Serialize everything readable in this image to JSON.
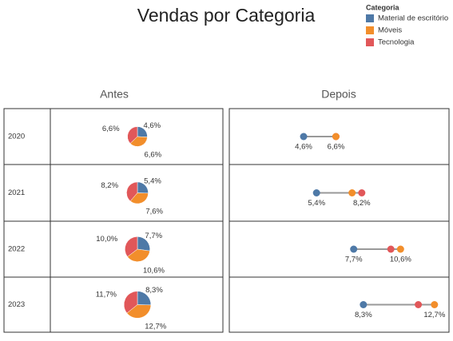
{
  "chart_data": {
    "type": "pie_dot",
    "title": "Vendas por Categoria",
    "legend_title": "Categoria",
    "panel_titles": [
      "Antes",
      "Depois"
    ],
    "categories": [
      "2020",
      "2021",
      "2022",
      "2023"
    ],
    "series": [
      {
        "name": "Material de escritório",
        "color": "#4e79a7",
        "values": [
          4.6,
          5.4,
          7.7,
          8.3
        ],
        "value_labels": [
          "4,6%",
          "5,4%",
          "7,7%",
          "8,3%"
        ]
      },
      {
        "name": "Móveis",
        "color": "#f28e2b",
        "values": [
          6.6,
          7.6,
          10.6,
          12.7
        ],
        "value_labels": [
          "6,6%",
          "7,6%",
          "10,6%",
          "12,7%"
        ]
      },
      {
        "name": "Tecnologia",
        "color": "#e15759",
        "values": [
          6.6,
          8.2,
          10.0,
          11.7
        ],
        "value_labels": [
          "6,6%",
          "8,2%",
          "10,0%",
          "11,7%"
        ]
      }
    ],
    "xlim": [
      0,
      13.6
    ]
  }
}
